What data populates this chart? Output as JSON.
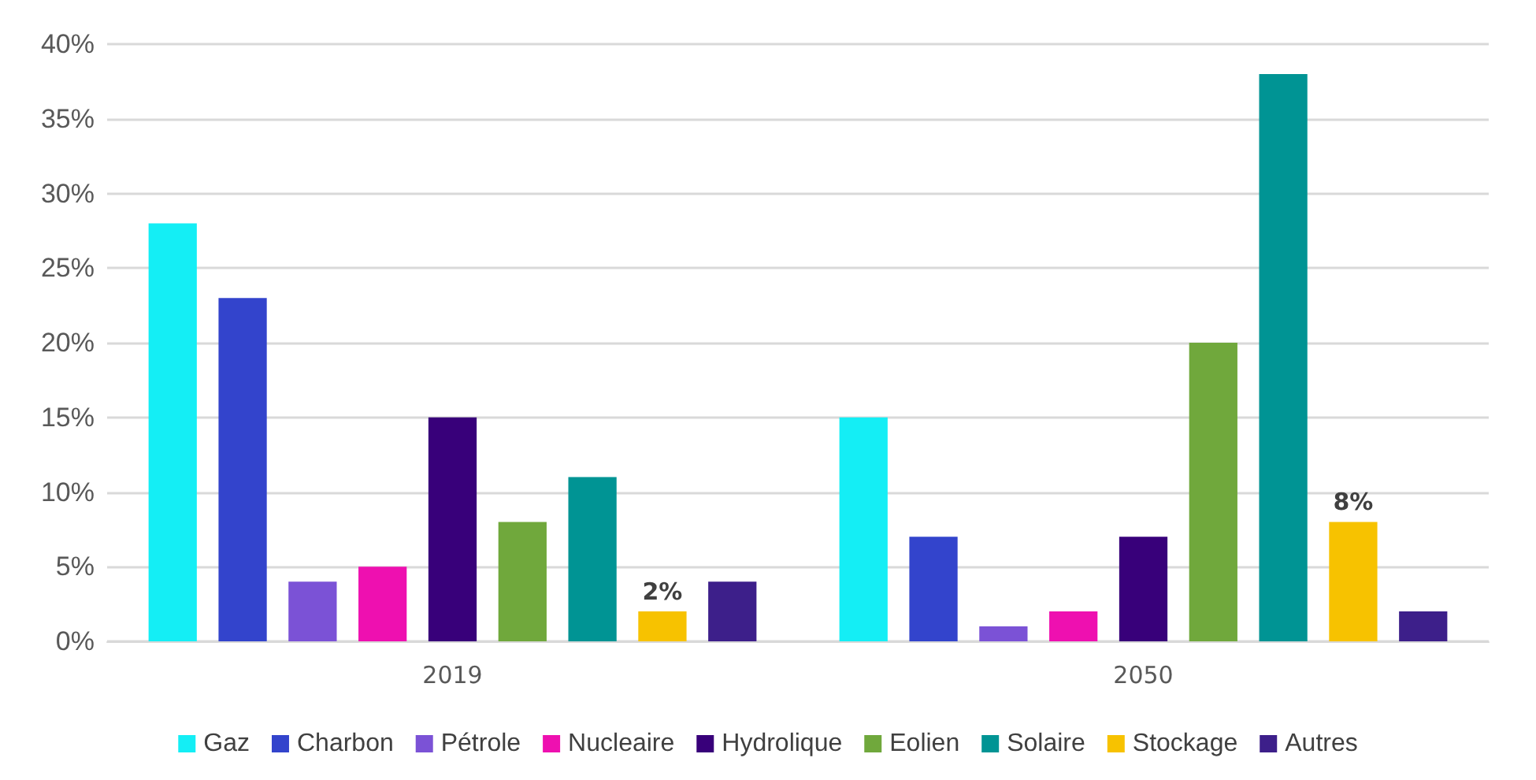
{
  "chart_data": {
    "type": "bar",
    "categories": [
      "2019",
      "2050"
    ],
    "series": [
      {
        "name": "Gaz",
        "color": "#14eef5",
        "values": [
          28,
          15
        ]
      },
      {
        "name": "Charbon",
        "color": "#3344cc",
        "values": [
          23,
          7
        ]
      },
      {
        "name": "Pétrole",
        "color": "#7b52d6",
        "values": [
          4,
          1
        ]
      },
      {
        "name": "Nucleaire",
        "color": "#ee10b0",
        "values": [
          5,
          2
        ]
      },
      {
        "name": "Hydrolique",
        "color": "#38007a",
        "values": [
          15,
          7
        ]
      },
      {
        "name": "Eolien",
        "color": "#70a83c",
        "values": [
          8,
          20
        ]
      },
      {
        "name": "Solaire",
        "color": "#009494",
        "values": [
          11,
          38
        ]
      },
      {
        "name": "Stockage",
        "color": "#f7c200",
        "values": [
          2,
          8
        ],
        "value_labels": [
          "2%",
          "8%"
        ]
      },
      {
        "name": "Autres",
        "color": "#3d1f8a",
        "values": [
          4,
          2
        ]
      }
    ],
    "ylim": [
      0,
      40
    ],
    "yticks": [
      {
        "value": 0,
        "label": "0%"
      },
      {
        "value": 5,
        "label": "5%"
      },
      {
        "value": 10,
        "label": "10%"
      },
      {
        "value": 15,
        "label": "15%"
      },
      {
        "value": 20,
        "label": "20%"
      },
      {
        "value": 25,
        "label": "25%"
      },
      {
        "value": 30,
        "label": "30%"
      },
      {
        "value": 35,
        "label": "35%"
      },
      {
        "value": 40,
        "label": "40%"
      }
    ],
    "grid": "y",
    "legend": "bottom"
  }
}
